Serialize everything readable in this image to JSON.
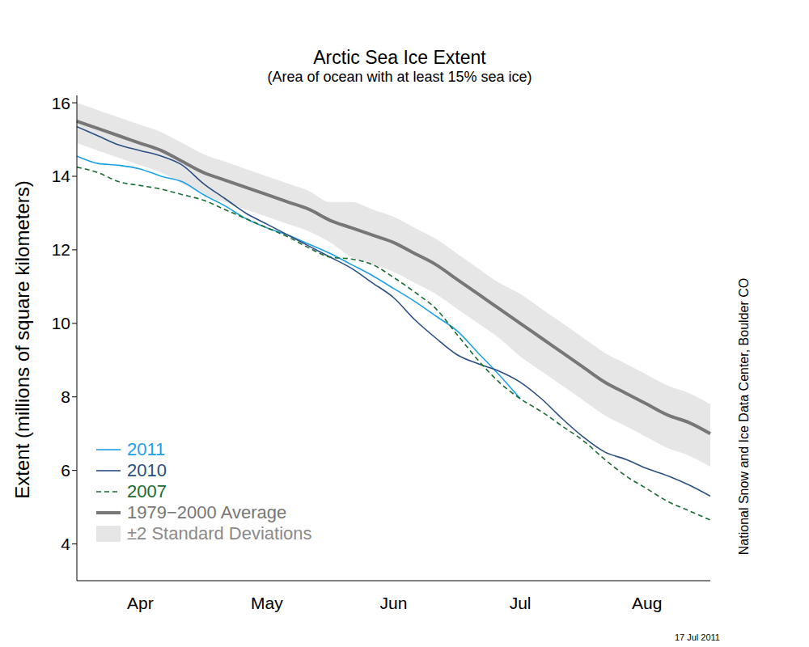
{
  "chart_data": {
    "type": "line",
    "title": "Arctic Sea Ice Extent",
    "subtitle": "(Area of ocean with at least 15% sea ice)",
    "y_label": "Extent (millions of square kilometers)",
    "credit": "National Snow and Ice Data Center, Boulder CO",
    "date_stamp": "17 Jul 2011",
    "categories": [
      null,
      null,
      null,
      "Apr",
      null,
      null,
      null,
      null,
      null,
      "May",
      null,
      null,
      null,
      null,
      null,
      "Jun",
      null,
      null,
      null,
      null,
      null,
      "Jul",
      null,
      null,
      null,
      null,
      null,
      "Aug",
      null,
      null,
      null
    ],
    "ylim": [
      3,
      16.2
    ],
    "yticks": [
      4,
      6,
      8,
      10,
      12,
      14,
      16
    ],
    "legend": "lower left",
    "series": [
      {
        "name": "2011",
        "color": "#1ea0e6",
        "line_style": "solid",
        "values": [
          14.55,
          14.35,
          14.3,
          14.2,
          14.0,
          13.85,
          13.5,
          13.2,
          12.85,
          12.6,
          12.4,
          12.15,
          11.9,
          11.6,
          11.3,
          10.95,
          10.6,
          10.2,
          9.8,
          9.2,
          8.6,
          7.95,
          null,
          null,
          null,
          null,
          null,
          null,
          null,
          null,
          null
        ]
      },
      {
        "name": "2010",
        "color": "#2a4f80",
        "line_style": "solid",
        "values": [
          15.35,
          15.1,
          14.85,
          14.7,
          14.55,
          14.3,
          13.8,
          13.4,
          13.0,
          12.7,
          12.4,
          12.1,
          11.8,
          11.5,
          11.1,
          10.7,
          10.1,
          9.6,
          9.15,
          8.9,
          8.7,
          8.4,
          7.95,
          7.4,
          6.9,
          6.5,
          6.3,
          6.05,
          5.85,
          5.6,
          5.3
        ]
      },
      {
        "name": "2007",
        "color": "#1b6b34",
        "line_style": "dashed",
        "values": [
          14.25,
          14.1,
          13.85,
          13.75,
          13.65,
          13.5,
          13.35,
          13.1,
          12.85,
          12.6,
          12.35,
          12.05,
          11.8,
          11.75,
          11.6,
          11.25,
          10.85,
          10.4,
          9.7,
          9.0,
          8.4,
          7.95,
          7.6,
          7.2,
          6.8,
          6.3,
          5.85,
          5.5,
          5.15,
          4.9,
          4.65
        ]
      },
      {
        "name": "1979−2000 Average",
        "color": "#777777",
        "line_style": "solid",
        "values": [
          15.5,
          15.3,
          15.1,
          14.9,
          14.7,
          14.4,
          14.1,
          13.9,
          13.7,
          13.5,
          13.3,
          13.1,
          12.8,
          12.6,
          12.4,
          12.2,
          11.9,
          11.6,
          11.2,
          10.8,
          10.4,
          10.0,
          9.6,
          9.2,
          8.8,
          8.4,
          8.1,
          7.8,
          7.5,
          7.3,
          7.0
        ]
      }
    ],
    "band": {
      "name": "±2 Standard Deviations",
      "color": "#e6e6e6",
      "lower": [
        14.9,
        14.7,
        14.5,
        14.3,
        14.1,
        13.8,
        13.5,
        13.3,
        13.1,
        12.9,
        12.7,
        12.5,
        12.2,
        11.8,
        11.6,
        11.4,
        11.1,
        10.8,
        10.4,
        10.0,
        9.6,
        9.1,
        8.7,
        8.3,
        7.9,
        7.5,
        7.2,
        6.9,
        6.6,
        6.4,
        6.1
      ],
      "upper": [
        16.0,
        15.8,
        15.6,
        15.4,
        15.2,
        14.9,
        14.6,
        14.4,
        14.2,
        14.0,
        13.8,
        13.6,
        13.3,
        13.3,
        13.1,
        12.9,
        12.6,
        12.3,
        11.9,
        11.5,
        11.1,
        10.8,
        10.4,
        10.0,
        9.6,
        9.2,
        8.9,
        8.6,
        8.3,
        8.1,
        7.8
      ]
    }
  }
}
